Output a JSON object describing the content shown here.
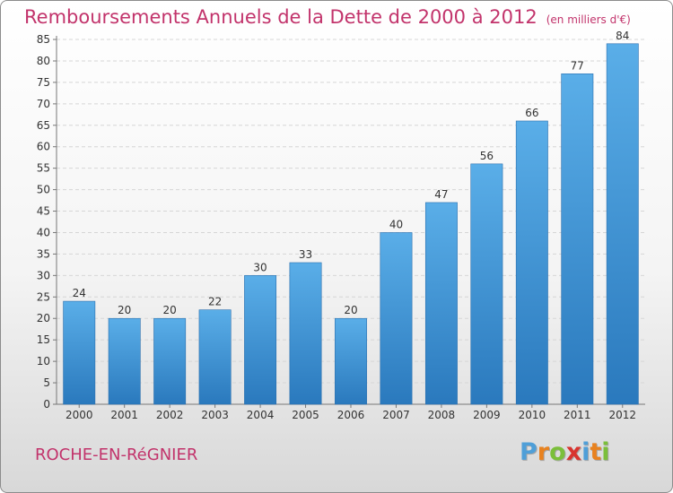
{
  "title": {
    "main": "Remboursements Annuels de la Dette de 2000 à 2012",
    "unit": "(en milliers d'€)"
  },
  "commune": "ROCHE-EN-RéGNIER",
  "logo": {
    "letters": [
      "P",
      "r",
      "o",
      "x",
      "i",
      "t",
      "i"
    ],
    "colors": [
      "#4f9fd8",
      "#e8821f",
      "#7bbf3a",
      "#d8342f",
      "#4f9fd8",
      "#e8821f",
      "#7bbf3a"
    ]
  },
  "colors": {
    "bar_light": "#5aaee8",
    "bar_dark": "#2a79bd",
    "title": "#c2336b"
  },
  "chart_data": {
    "type": "bar",
    "title": "Remboursements Annuels de la Dette de 2000 à 2012",
    "xlabel": "",
    "ylabel": "",
    "categories": [
      "2000",
      "2001",
      "2002",
      "2003",
      "2004",
      "2005",
      "2006",
      "2007",
      "2008",
      "2009",
      "2010",
      "2011",
      "2012"
    ],
    "values": [
      24,
      20,
      20,
      22,
      30,
      33,
      20,
      40,
      47,
      56,
      66,
      77,
      84
    ],
    "ylim": [
      0,
      85
    ],
    "yticks": [
      0,
      5,
      10,
      15,
      20,
      25,
      30,
      35,
      40,
      45,
      50,
      55,
      60,
      65,
      70,
      75,
      80,
      85
    ],
    "grid": true
  }
}
